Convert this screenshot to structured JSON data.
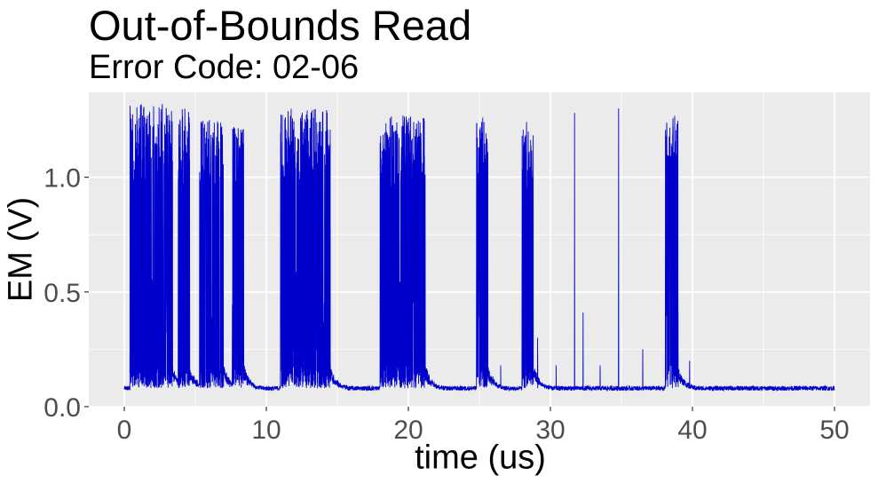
{
  "chart_data": {
    "type": "line",
    "title": "Out-of-Bounds Read",
    "subtitle": "Error Code: 02-06",
    "xlabel": "time (us)",
    "ylabel": "EM (V)",
    "xlim": [
      -2.5,
      52.5
    ],
    "ylim": [
      0.0,
      1.37
    ],
    "xticks": [
      0,
      10,
      20,
      30,
      40,
      50
    ],
    "xtick_labels": [
      "0",
      "10",
      "20",
      "30",
      "40",
      "50"
    ],
    "yticks": [
      0.0,
      0.5,
      1.0
    ],
    "ytick_labels": [
      "0.0",
      "0.5",
      "1.0"
    ],
    "grid": true,
    "legend": "none",
    "series": [
      {
        "color": "#0000cc",
        "baseline": 0.08,
        "bursts": [
          {
            "start": 0.4,
            "end": 3.4,
            "peak": 1.32
          },
          {
            "start": 3.8,
            "end": 4.6,
            "peak": 1.3
          },
          {
            "start": 5.3,
            "end": 7.0,
            "peak": 1.25
          },
          {
            "start": 7.6,
            "end": 8.4,
            "peak": 1.22
          },
          {
            "start": 11.0,
            "end": 14.5,
            "peak": 1.3
          },
          {
            "start": 18.0,
            "end": 21.2,
            "peak": 1.27
          },
          {
            "start": 24.8,
            "end": 25.6,
            "peak": 1.27
          },
          {
            "start": 28.0,
            "end": 28.8,
            "peak": 1.25
          },
          {
            "start": 38.1,
            "end": 39.0,
            "peak": 1.27
          }
        ],
        "spikes": [
          {
            "x": 31.7,
            "peak": 1.28
          },
          {
            "x": 32.3,
            "peak": 0.41
          },
          {
            "x": 34.8,
            "peak": 1.3
          },
          {
            "x": 29.1,
            "peak": 0.3
          },
          {
            "x": 30.4,
            "peak": 0.18
          },
          {
            "x": 26.5,
            "peak": 0.18
          },
          {
            "x": 33.5,
            "peak": 0.18
          },
          {
            "x": 36.5,
            "peak": 0.25
          },
          {
            "x": 39.8,
            "peak": 0.2
          }
        ]
      }
    ]
  }
}
